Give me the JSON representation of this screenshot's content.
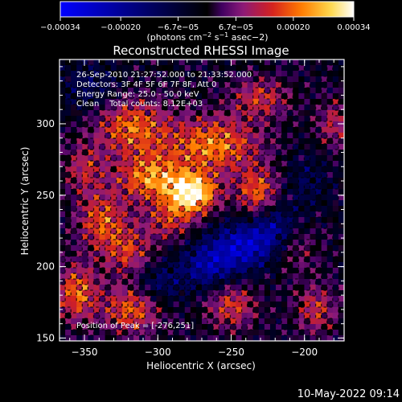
{
  "chart_data": {
    "type": "heatmap",
    "title": "Reconstructed RHESSI Image",
    "xlabel": "Heliocentric X (arcsec)",
    "ylabel": "Heliocentric Y (arcsec)",
    "xlim": [
      -367,
      -173
    ],
    "ylim": [
      148,
      345
    ],
    "xticks": [
      -350,
      -300,
      -250,
      -200
    ],
    "yticks": [
      150,
      200,
      250,
      300
    ],
    "xtick_labels": [
      "−350",
      "−300",
      "−250",
      "−200"
    ],
    "ytick_labels": [
      "150",
      "200",
      "250",
      "300"
    ],
    "annotations": [
      "26-Sep-2010 21:27:52.000 to 21:33:52.000",
      "Detectors: 3F 4F 5F 6F 7F 8F, Att 0",
      "Energy Range: 25.0 - 50.0 keV",
      "Clean    Total counts: 8.12E+03"
    ],
    "peak_label": "Position of Peak = [-276,251]",
    "peak_position": [
      -276,
      251
    ],
    "colorbar": {
      "ticks": [
        -0.00034,
        -0.0002,
        -6.7e-05,
        6.7e-05,
        0.0002,
        0.00034
      ],
      "tick_labels": [
        "−0.00034",
        "−0.00020",
        "−6.7e−05",
        "6.7e−05",
        "0.00020",
        "0.00034"
      ],
      "range": [
        -0.00034,
        0.00034
      ],
      "unit_base": "(photons cm",
      "unit_exp1": "−2",
      "unit_mid": " s",
      "unit_exp2": "−1",
      "unit_tail": " asec−2)"
    },
    "colormap": [
      "#0000ff",
      "#000000",
      "#400060",
      "#8a1a7a",
      "#d42020",
      "#ff7a00",
      "#ffd84a",
      "#ffffff"
    ],
    "blobs": [
      {
        "x": -276,
        "y": 251,
        "amp": 0.00034,
        "sx": 12,
        "sy": 10
      },
      {
        "x": -305,
        "y": 262,
        "amp": 0.00024,
        "sx": 16,
        "sy": 12
      },
      {
        "x": -262,
        "y": 285,
        "amp": 0.00024,
        "sx": 22,
        "sy": 14
      },
      {
        "x": -318,
        "y": 298,
        "amp": 0.00022,
        "sx": 18,
        "sy": 14
      },
      {
        "x": -232,
        "y": 252,
        "amp": 0.00021,
        "sx": 10,
        "sy": 12
      },
      {
        "x": -338,
        "y": 232,
        "amp": 0.0002,
        "sx": 12,
        "sy": 14
      },
      {
        "x": -320,
        "y": 210,
        "amp": 0.00016,
        "sx": 12,
        "sy": 12
      },
      {
        "x": -355,
        "y": 182,
        "amp": 0.00022,
        "sx": 10,
        "sy": 14
      },
      {
        "x": -318,
        "y": 170,
        "amp": 0.00021,
        "sx": 14,
        "sy": 12
      },
      {
        "x": -250,
        "y": 173,
        "amp": 0.00018,
        "sx": 12,
        "sy": 12
      },
      {
        "x": -192,
        "y": 170,
        "amp": 0.00016,
        "sx": 10,
        "sy": 12
      },
      {
        "x": -230,
        "y": 318,
        "amp": 0.00016,
        "sx": 14,
        "sy": 10
      },
      {
        "x": -208,
        "y": 212,
        "amp": 0.0001,
        "sx": 12,
        "sy": 12
      },
      {
        "x": -292,
        "y": 232,
        "amp": 0.00015,
        "sx": 12,
        "sy": 10
      },
      {
        "x": -350,
        "y": 268,
        "amp": 0.00014,
        "sx": 10,
        "sy": 12
      },
      {
        "x": -180,
        "y": 300,
        "amp": 0.00014,
        "sx": 8,
        "sy": 12
      },
      {
        "x": -240,
        "y": 215,
        "amp": -0.00022,
        "sx": 16,
        "sy": 12
      },
      {
        "x": -265,
        "y": 200,
        "amp": -0.00018,
        "sx": 14,
        "sy": 12
      },
      {
        "x": -220,
        "y": 228,
        "amp": -0.00014,
        "sx": 10,
        "sy": 12
      },
      {
        "x": -300,
        "y": 188,
        "amp": -0.00012,
        "sx": 12,
        "sy": 10
      },
      {
        "x": -345,
        "y": 325,
        "amp": -0.0001,
        "sx": 14,
        "sy": 12
      },
      {
        "x": -198,
        "y": 260,
        "amp": -8e-05,
        "sx": 10,
        "sy": 14
      }
    ],
    "background_level": -2e-05
  },
  "footer_timestamp": "10-May-2022 09:14"
}
